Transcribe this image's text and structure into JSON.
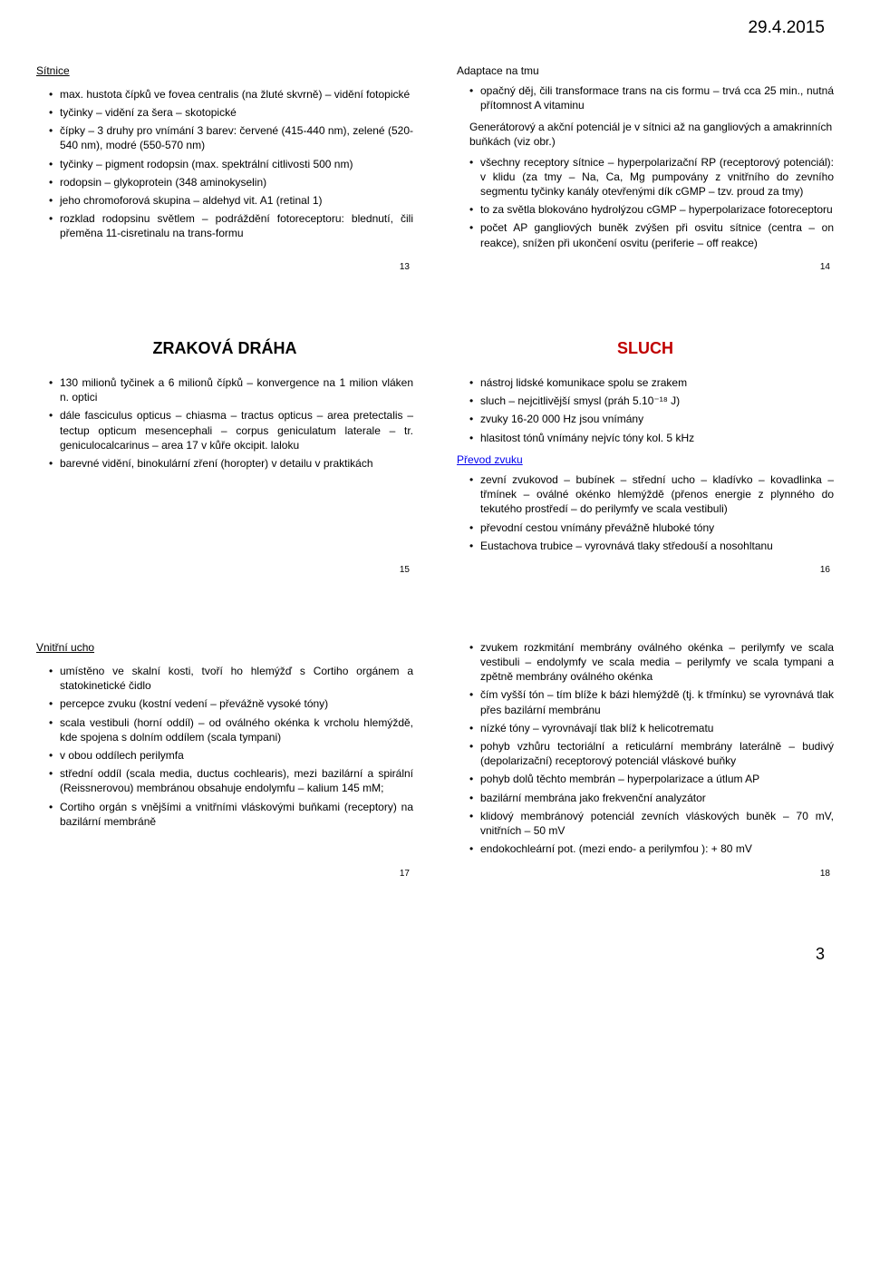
{
  "date_header": "29.4.2015",
  "page_number": "3",
  "slides": {
    "s13": {
      "title": "Sítnice",
      "bullets": [
        "max. hustota čípků ve fovea centralis (na žluté skvrně) – vidění fotopické",
        "tyčinky – vidění za šera – skotopické",
        "čípky – 3 druhy pro vnímání 3 barev: červené (415-440 nm), zelené (520-540 nm), modré (550-570 nm)",
        "tyčinky – pigment rodopsin (max. spektrální citlivosti 500 nm)",
        "rodopsin – glykoprotein (348 aminokyselin)",
        "jeho chromoforová skupina – aldehyd vit. A1 (retinal 1)",
        "rozklad rodopsinu světlem – podráždění fotoreceptoru: blednutí, čili přeměna 11-cisretinalu na trans-formu"
      ],
      "num": "13"
    },
    "s14": {
      "subhead": "Adaptace na tmu",
      "bullets1": [
        "opačný děj, čili transformace trans na cis formu – trvá cca 25 min., nutná přítomnost A vitaminu"
      ],
      "subhead2": "Generátorový a akční potenciál je v sítnici až na gangliových a amakrinních buňkách (viz obr.)",
      "bullets2": [
        "všechny receptory sítnice – hyperpolarizační RP (receptorový potenciál): v klidu (za tmy – Na, Ca, Mg pumpovány z vnitřního do zevního segmentu tyčinky kanály otevřenými dík cGMP – tzv. proud za tmy)",
        "to za světla blokováno hydrolýzou cGMP – hyperpolarizace fotoreceptoru",
        "počet AP gangliových buněk zvýšen při osvitu sítnice (centra – on reakce), snížen při ukončení osvitu (periferie – off reakce)"
      ],
      "num": "14"
    },
    "s15": {
      "heading": "ZRAKOVÁ DRÁHA",
      "bullets": [
        "130 milionů tyčinek a 6 milionů čípků – konvergence na 1 milion vláken n. optici",
        "dále fasciculus opticus – chiasma – tractus opticus – area pretectalis – tectup opticum mesencephali – corpus geniculatum laterale – tr. geniculocalcarinus – area 17 v kůře okcipit. laloku",
        "barevné vidění, binokulární zření (horopter) v detailu v praktikách"
      ],
      "num": "15"
    },
    "s16": {
      "heading": "SLUCH",
      "bullets1": [
        "nástroj lidské komunikace spolu se zrakem",
        "sluch – nejcitlivější smysl (práh 5.10⁻¹⁸ J)",
        "zvuky 16-20 000 Hz jsou vnímány",
        "hlasitost tónů vnímány nejvíc tóny kol. 5 kHz"
      ],
      "subhead": "Převod zvuku",
      "bullets2": [
        "zevní zvukovod – bubínek – střední ucho – kladívko – kovadlinka – třmínek – oválné okénko hlemýždě (přenos energie z plynného do tekutého prostředí – do perilymfy ve scala vestibuli)",
        "převodní cestou vnímány převážně hluboké tóny",
        "Eustachova trubice – vyrovnává tlaky středouší a nosohltanu"
      ],
      "num": "16"
    },
    "s17": {
      "title": "Vnitřní ucho",
      "bullets": [
        "umístěno ve skalní kosti, tvoří ho hlemýžď s Cortiho orgánem a statokinetické čidlo",
        "percepce zvuku (kostní vedení – převážně vysoké tóny)",
        "scala vestibuli (horní oddíl) – od oválného okénka k vrcholu hlemýždě, kde spojena s dolním oddílem (scala tympani)",
        "v obou oddílech perilymfa",
        "střední oddíl (scala media, ductus cochlearis), mezi bazilární a spirální (Reissnerovou) membránou obsahuje endolymfu – kalium 145 mM;",
        "Cortiho orgán s vnějšími a vnitřními vláskovými buňkami (receptory) na bazilární membráně"
      ],
      "num": "17"
    },
    "s18": {
      "bullets": [
        "zvukem rozkmitání membrány oválného okénka – perilymfy ve scala vestibuli – endolymfy ve scala media – perilymfy ve scala tympani a zpětně membrány oválného okénka",
        "čím vyšší tón – tím blíže k bázi hlemýždě (tj. k třmínku) se vyrovnává tlak přes bazilární membránu",
        "nízké tóny – vyrovnávají tlak blíž k helicotrematu",
        "pohyb vzhůru tectoriální a reticulární membrány laterálně – budivý (depolarizační) receptorový potenciál vláskové buňky",
        "pohyb dolů těchto membrán – hyperpolarizace a útlum AP",
        "bazilární membrána jako frekvenční analyzátor",
        "klidový membránový potenciál zevních vláskových buněk – 70 mV, vnitřních – 50 mV",
        "endokochleární pot. (mezi endo- a perilymfou ): + 80 mV"
      ],
      "num": "18"
    }
  }
}
